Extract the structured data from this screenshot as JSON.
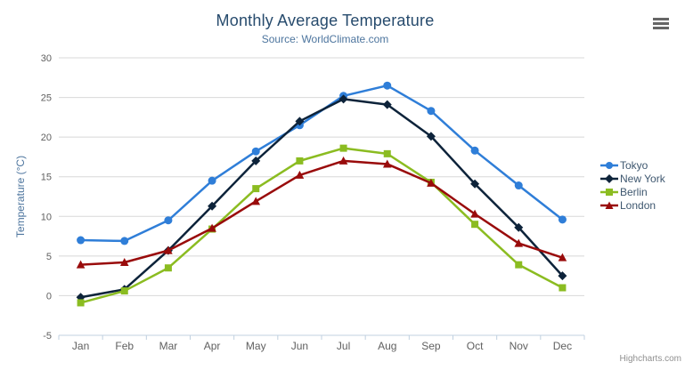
{
  "chart": {
    "title": "Monthly Average Temperature",
    "subtitle": "Source: WorldClimate.com",
    "credits_label": "Highcharts.com",
    "export_button": "chart context menu"
  },
  "chart_data": {
    "type": "line",
    "title": "Monthly Average Temperature",
    "subtitle": "Source: WorldClimate.com",
    "categories": [
      "Jan",
      "Feb",
      "Mar",
      "Apr",
      "May",
      "Jun",
      "Jul",
      "Aug",
      "Sep",
      "Oct",
      "Nov",
      "Dec"
    ],
    "series": [
      {
        "name": "Tokyo",
        "color": "#2f7ed8",
        "marker": "circle",
        "values": [
          7.0,
          6.9,
          9.5,
          14.5,
          18.2,
          21.5,
          25.2,
          26.5,
          23.3,
          18.3,
          13.9,
          9.6
        ]
      },
      {
        "name": "New York",
        "color": "#0d233a",
        "marker": "diamond",
        "values": [
          -0.2,
          0.8,
          5.7,
          11.3,
          17.0,
          22.0,
          24.8,
          24.1,
          20.1,
          14.1,
          8.6,
          2.5
        ]
      },
      {
        "name": "Berlin",
        "color": "#8bbc21",
        "marker": "square",
        "values": [
          -0.9,
          0.6,
          3.5,
          8.4,
          13.5,
          17.0,
          18.6,
          17.9,
          14.3,
          9.0,
          3.9,
          1.0
        ]
      },
      {
        "name": "London",
        "color": "#990b0b",
        "marker": "triangle",
        "values": [
          3.9,
          4.2,
          5.7,
          8.5,
          11.9,
          15.2,
          17.0,
          16.6,
          14.2,
          10.3,
          6.6,
          4.8
        ]
      }
    ],
    "xlabel": "",
    "ylabel": "Temperature (°C)",
    "ylim": [
      -5,
      30
    ],
    "ytick_interval": 5,
    "grid": "horizontal",
    "legend_position": "right"
  },
  "colors": {
    "title": "#274b6d",
    "subtitle": "#4d759e",
    "axis_label": "#606060",
    "axis_title": "#4d759e",
    "gridline": "#d8d8d8",
    "axis_line": "#c0d0e0",
    "legend_text": "#3e576f",
    "credits": "#909090",
    "export_icon": "#666666"
  }
}
